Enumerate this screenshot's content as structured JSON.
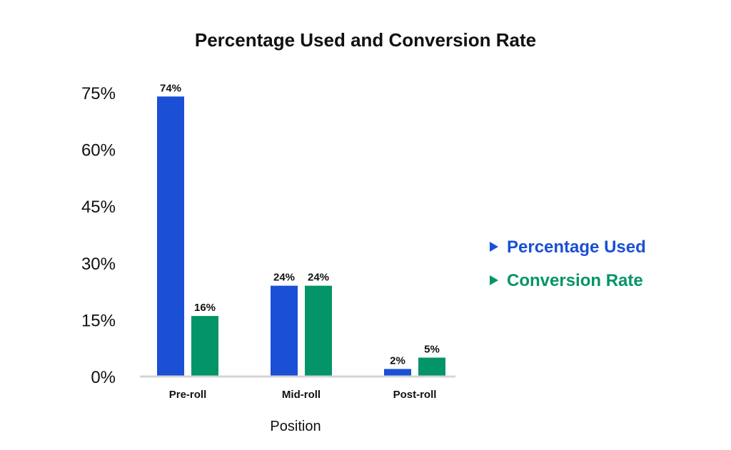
{
  "chart_data": {
    "type": "bar",
    "title": "Percentage Used and Conversion Rate",
    "xlabel": "Position",
    "ylabel": "",
    "categories": [
      "Pre-roll",
      "Mid-roll",
      "Post-roll"
    ],
    "series": [
      {
        "name": "Percentage Used",
        "values": [
          74,
          24,
          2
        ],
        "labels": [
          "74%",
          "24%",
          "2%"
        ],
        "color": "#1a4fd6"
      },
      {
        "name": "Conversion Rate",
        "values": [
          16,
          24,
          5
        ],
        "labels": [
          "16%",
          "24%",
          "5%"
        ],
        "color": "#039468"
      }
    ],
    "yticks": [
      0,
      15,
      30,
      45,
      60,
      75
    ],
    "ytick_labels": [
      "0%",
      "15%",
      "30%",
      "45%",
      "60%",
      "75%"
    ],
    "ylim": [
      0,
      75
    ],
    "grid": false,
    "legend_position": "right"
  }
}
